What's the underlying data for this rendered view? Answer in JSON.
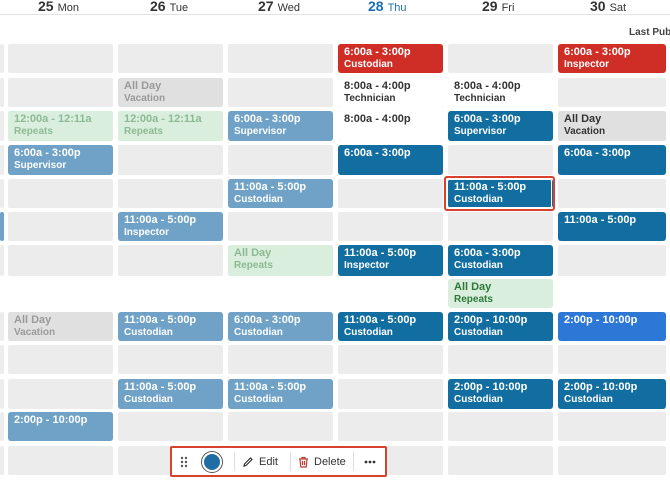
{
  "days": [
    {
      "num": "25",
      "wd": "Mon",
      "today": false
    },
    {
      "num": "26",
      "wd": "Tue",
      "today": false
    },
    {
      "num": "27",
      "wd": "Wed",
      "today": false
    },
    {
      "num": "28",
      "wd": "Thu",
      "today": true
    },
    {
      "num": "29",
      "wd": "Fri",
      "today": false
    },
    {
      "num": "30",
      "wd": "Sat",
      "today": false
    }
  ],
  "header": {
    "last_published": "Last Publ"
  },
  "shifts": [
    {
      "time": "6:00a - 3:00p",
      "role": "Custodian",
      "color": "red"
    },
    {
      "time": "6:00a - 3:00p",
      "role": "Inspector",
      "color": "red"
    },
    {
      "time": "All Day",
      "role": "Vacation",
      "color": "gray"
    },
    {
      "time": "8:00a - 4:00p",
      "role": "Technician",
      "color": "white"
    },
    {
      "time": "8:00a - 4:00p",
      "role": "Technician",
      "color": "white"
    },
    {
      "time": "12:00a - 12:11a",
      "role": "Repeats",
      "color": "green"
    },
    {
      "time": "12:00a - 12:11a",
      "role": "Repeats",
      "color": "green"
    },
    {
      "time": "6:00a - 3:00p",
      "role": "Supervisor",
      "color": "lite"
    },
    {
      "time": "8:00a - 4:00p",
      "role": "",
      "color": "white"
    },
    {
      "time": "6:00a - 3:00p",
      "role": "Supervisor",
      "color": "dark"
    },
    {
      "time": "All Day",
      "role": "Vacation",
      "color": "gray-strong"
    },
    {
      "time": "6:00a - 3:00p",
      "role": "Supervisor",
      "color": "lite"
    },
    {
      "time": "6:00a - 3:00p",
      "role": "",
      "color": "dark"
    },
    {
      "time": "6:00a - 3:00p",
      "role": "",
      "color": "dark"
    },
    {
      "time": "11:00a - 5:00p",
      "role": "Custodian",
      "color": "lite"
    },
    {
      "time": "11:00a - 5:00p",
      "role": "Custodian",
      "color": "dark",
      "selected": true
    },
    {
      "time": "",
      "role": "",
      "color": "lite"
    },
    {
      "time": "11:00a - 5:00p",
      "role": "Inspector",
      "color": "lite"
    },
    {
      "time": "11:00a - 5:00p",
      "role": "",
      "color": "dark"
    },
    {
      "time": "All Day",
      "role": "Repeats",
      "color": "green"
    },
    {
      "time": "11:00a - 5:00p",
      "role": "Inspector",
      "color": "dark"
    },
    {
      "time": "6:00a - 3:00p",
      "role": "Custodian",
      "color": "dark"
    },
    {
      "time": "All Day",
      "role": "Repeats",
      "color": "green-strong"
    },
    {
      "time": "All Day",
      "role": "Vacation",
      "color": "gray"
    },
    {
      "time": "11:00a - 5:00p",
      "role": "Custodian",
      "color": "lite"
    },
    {
      "time": "6:00a - 3:00p",
      "role": "Custodian",
      "color": "lite"
    },
    {
      "time": "11:00a - 5:00p",
      "role": "Custodian",
      "color": "dark"
    },
    {
      "time": "2:00p - 10:00p",
      "role": "Custodian",
      "color": "dark"
    },
    {
      "time": "2:00p - 10:00p",
      "role": "",
      "color": "bright"
    },
    {
      "time": "11:00a - 5:00p",
      "role": "Custodian",
      "color": "lite"
    },
    {
      "time": "11:00a - 5:00p",
      "role": "Custodian",
      "color": "lite"
    },
    {
      "time": "2:00p - 10:00p",
      "role": "Custodian",
      "color": "dark"
    },
    {
      "time": "2:00p - 10:00p",
      "role": "Custodian",
      "color": "dark"
    },
    {
      "time": "2:00p - 10:00p",
      "role": "",
      "color": "lite"
    }
  ],
  "toolbar": {
    "edit_label": "Edit",
    "delete_label": "Delete"
  },
  "colors": {
    "selected_outline": "#d9412f",
    "shift_color_swatch": "#1f6ea3"
  }
}
